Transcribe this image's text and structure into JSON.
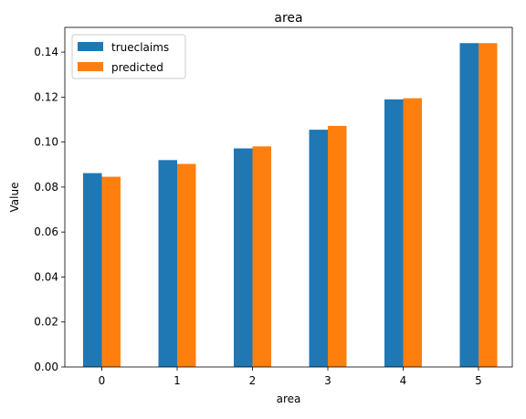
{
  "chart_data": {
    "type": "bar",
    "title": "area",
    "xlabel": "area",
    "ylabel": "Value",
    "categories": [
      "0",
      "1",
      "2",
      "3",
      "4",
      "5"
    ],
    "series": [
      {
        "name": "trueclaims",
        "color": "#1f77b4",
        "values": [
          0.0862,
          0.092,
          0.0972,
          0.1055,
          0.119,
          0.144
        ]
      },
      {
        "name": "predicted",
        "color": "#ff7f0e",
        "values": [
          0.0846,
          0.0903,
          0.0981,
          0.1072,
          0.1195,
          0.144
        ]
      }
    ],
    "ylim": [
      0,
      0.151
    ],
    "yticks": [
      "0.00",
      "0.02",
      "0.04",
      "0.06",
      "0.08",
      "0.10",
      "0.12",
      "0.14"
    ],
    "grid": false,
    "legend": "top-left"
  }
}
